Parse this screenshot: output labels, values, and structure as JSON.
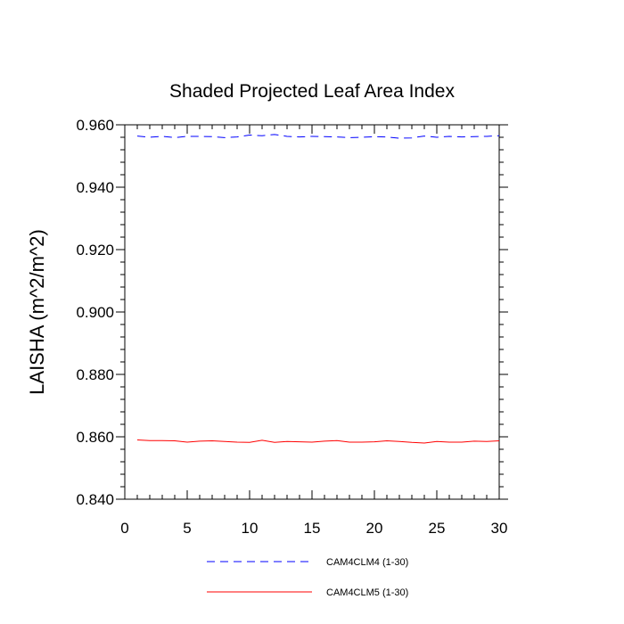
{
  "chart_data": {
    "type": "line",
    "title": "Shaded Projected Leaf Area Index",
    "xlabel": "",
    "ylabel": "LAISHA  (m^2/m^2)",
    "xlim": [
      0,
      30
    ],
    "ylim": [
      0.84,
      0.96
    ],
    "x_ticks": [
      0,
      5,
      10,
      15,
      20,
      25,
      30
    ],
    "x_tick_labels": [
      "0",
      "5",
      "10",
      "15",
      "20",
      "25",
      "30"
    ],
    "y_ticks": [
      0.84,
      0.86,
      0.88,
      0.9,
      0.92,
      0.94,
      0.96
    ],
    "y_tick_labels": [
      "0.840",
      "0.860",
      "0.880",
      "0.900",
      "0.920",
      "0.940",
      "0.960"
    ],
    "grid": false,
    "legend_position": "bottom-center",
    "x": [
      1,
      2,
      3,
      4,
      5,
      6,
      7,
      8,
      9,
      10,
      11,
      12,
      13,
      14,
      15,
      16,
      17,
      18,
      19,
      20,
      21,
      22,
      23,
      24,
      25,
      26,
      27,
      28,
      29,
      30
    ],
    "series": [
      {
        "name": "CAM4CLM4 (1-30)",
        "color": "#0000ff",
        "dash": "dashed",
        "values": [
          0.9564,
          0.956,
          0.9563,
          0.9559,
          0.9563,
          0.9563,
          0.9562,
          0.9559,
          0.9561,
          0.9567,
          0.9565,
          0.9569,
          0.9563,
          0.9561,
          0.9563,
          0.9562,
          0.9561,
          0.9559,
          0.956,
          0.9562,
          0.9561,
          0.9557,
          0.9558,
          0.9564,
          0.956,
          0.9563,
          0.9561,
          0.9562,
          0.9563,
          0.9565
        ]
      },
      {
        "name": "CAM4CLM5 (1-30)",
        "color": "#ff0000",
        "dash": "solid",
        "values": [
          0.859,
          0.8588,
          0.8588,
          0.8587,
          0.8583,
          0.8586,
          0.8587,
          0.8585,
          0.8583,
          0.8582,
          0.8589,
          0.8582,
          0.8585,
          0.8584,
          0.8583,
          0.8586,
          0.8588,
          0.8583,
          0.8583,
          0.8584,
          0.8587,
          0.8585,
          0.8582,
          0.858,
          0.8585,
          0.8583,
          0.8583,
          0.8586,
          0.8585,
          0.8587
        ]
      }
    ]
  }
}
